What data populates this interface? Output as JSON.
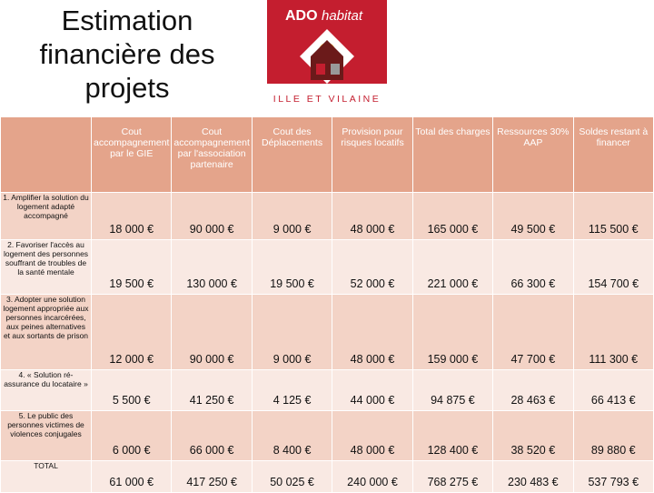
{
  "header": {
    "title": "Estimation financière des projets",
    "logo": {
      "brand": "ADO",
      "brand_suffix": "habitat",
      "region": "ILLE ET VILAINE"
    }
  },
  "table": {
    "columns": [
      "Cout accompagnement par le GIE",
      "Cout accompagnement par l'association partenaire",
      "Cout des Déplacements",
      "Provision pour risques locatifs",
      "Total des charges",
      "Ressources 30% AAP",
      "Soldes restant à financer"
    ],
    "rows": [
      [
        "1. Amplifier la solution du logement adapté accompagné",
        "18 000 €",
        "90 000 €",
        "9 000 €",
        "48 000 €",
        "165 000 €",
        "49 500 €",
        "115 500 €"
      ],
      [
        "2. Favoriser l'accès au logement des personnes souffrant de troubles de la santé mentale",
        "19 500 €",
        "130 000 €",
        "19 500 €",
        "52 000 €",
        "221 000 €",
        "66 300 €",
        "154 700 €"
      ],
      [
        "3. Adopter une solution logement appropriée aux personnes incarcérées, aux peines alternatives et aux sortants de prison",
        "12 000 €",
        "90 000 €",
        "9 000 €",
        "48 000 €",
        "159 000 €",
        "47 700 €",
        "111 300 €"
      ],
      [
        "4. « Solution ré-assurance du locataire »",
        "5 500 €",
        "41 250 €",
        "4 125 €",
        "44 000 €",
        "94 875 €",
        "28 463 €",
        "66 413 €"
      ],
      [
        "5. Le public des personnes victimes de violences conjugales",
        "6 000 €",
        "66 000 €",
        "8 400 €",
        "48 000 €",
        "128 400 €",
        "38 520 €",
        "89 880 €"
      ],
      [
        "TOTAL",
        "61 000 €",
        "417 250 €",
        "50 025 €",
        "240 000 €",
        "768 275 €",
        "230 483 €",
        "537 793 €"
      ]
    ]
  }
}
